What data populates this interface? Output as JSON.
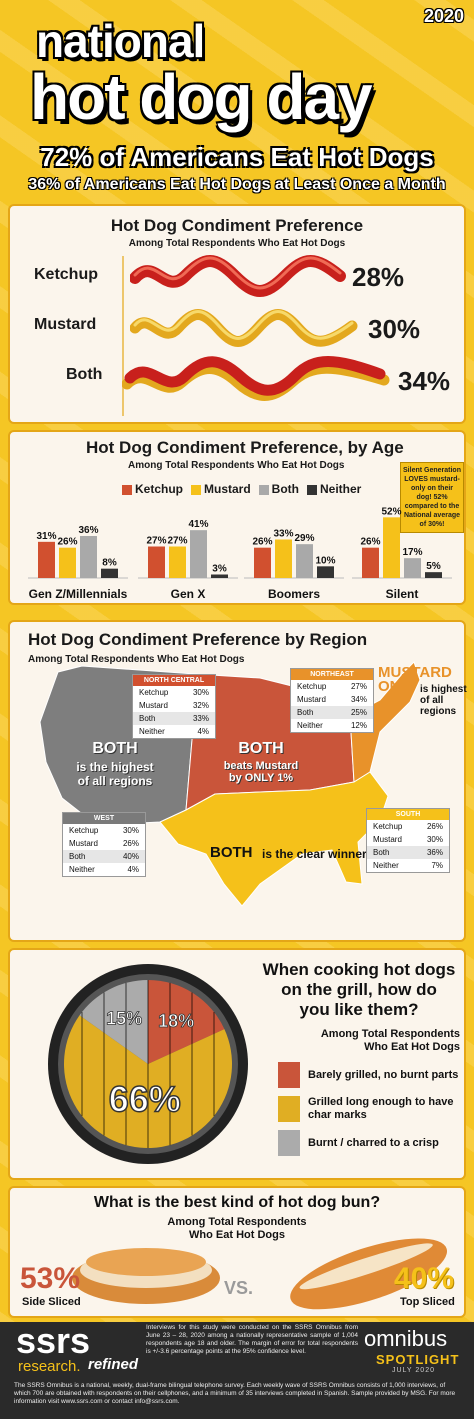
{
  "header": {
    "year": "2020",
    "title_line1": "national",
    "title_line2": "hot dog day",
    "headline": "72% of Americans Eat Hot Dogs",
    "subheadline": "36% of Americans Eat Hot Dogs at Least Once a Month"
  },
  "condiment": {
    "title": "Hot Dog Condiment Preference",
    "subtitle": "Among Total Respondents Who Eat Hot Dogs",
    "items": [
      {
        "label": "Ketchup",
        "value": "28%"
      },
      {
        "label": "Mustard",
        "value": "30%"
      },
      {
        "label": "Both",
        "value": "34%"
      }
    ]
  },
  "chart_data": {
    "type": "bar",
    "title": "Hot Dog Condiment Preference, by Age",
    "subtitle": "Among Total Respondents Who Eat Hot Dogs",
    "categories": [
      "Gen Z/Millennials",
      "Gen X",
      "Boomers",
      "Silent"
    ],
    "series": [
      {
        "name": "Ketchup",
        "values": [
          31,
          27,
          26,
          26
        ],
        "color": "#D1502F"
      },
      {
        "name": "Mustard",
        "values": [
          26,
          27,
          33,
          52
        ],
        "color": "#F5C11A"
      },
      {
        "name": "Both",
        "values": [
          36,
          41,
          29,
          17
        ],
        "color": "#A9A9A9"
      },
      {
        "name": "Neither",
        "values": [
          8,
          3,
          10,
          5
        ],
        "color": "#333333"
      }
    ],
    "ylim": [
      0,
      60
    ],
    "legend": "top"
  },
  "age_callout": "Silent Generation LOVES mustard-only on their dog! 52% compared to the National average of 30%!",
  "region": {
    "title": "Hot Dog Condiment Preference by Region",
    "subtitle": "Among Total Respondents Who Eat Hot Dogs",
    "callout_mustard_1": "MUSTARD",
    "callout_mustard_2": "ONLY",
    "callout_mustard_3": "is highest of all regions",
    "west_text_1": "BOTH",
    "west_text_2": "is the highest of all regions",
    "nc_text_1": "BOTH",
    "nc_text_2": "beats Mustard by ONLY 1%",
    "south_text_1": "BOTH",
    "south_text_2": "is the clear winner",
    "tables": [
      {
        "name": "NORTH CENTRAL",
        "color": "#D1502F",
        "rows": [
          [
            "Ketchup",
            "30%"
          ],
          [
            "Mustard",
            "32%"
          ],
          [
            "Both",
            "33%"
          ],
          [
            "Neither",
            "4%"
          ]
        ]
      },
      {
        "name": "NORTHEAST",
        "color": "#E8922A",
        "rows": [
          [
            "Ketchup",
            "27%"
          ],
          [
            "Mustard",
            "34%"
          ],
          [
            "Both",
            "25%"
          ],
          [
            "Neither",
            "12%"
          ]
        ]
      },
      {
        "name": "WEST",
        "color": "#7A7A7A",
        "rows": [
          [
            "Ketchup",
            "30%"
          ],
          [
            "Mustard",
            "26%"
          ],
          [
            "Both",
            "40%"
          ],
          [
            "Neither",
            "4%"
          ]
        ]
      },
      {
        "name": "SOUTH",
        "color": "#F5C11A",
        "rows": [
          [
            "Ketchup",
            "26%"
          ],
          [
            "Mustard",
            "30%"
          ],
          [
            "Both",
            "36%"
          ],
          [
            "Neither",
            "7%"
          ]
        ]
      }
    ]
  },
  "grill": {
    "question_1": "When cooking hot dogs",
    "question_2": "on the grill, how do",
    "question_3": "you like them?",
    "subtitle_1": "Among Total Respondents",
    "subtitle_2": "Who Eat Hot Dogs",
    "slices": [
      {
        "label": "Barely grilled, no burnt parts",
        "value": 18,
        "display": "18%",
        "color": "#C9553A"
      },
      {
        "label": "Grilled long enough to have char marks",
        "value": 66,
        "display": "66%",
        "color": "#E0AE23"
      },
      {
        "label": "Burnt / charred to a crisp",
        "value": 15,
        "display": "15%",
        "color": "#ABABAB"
      }
    ]
  },
  "bun": {
    "title": "What is the best kind of hot dog bun?",
    "subtitle_1": "Among Total Respondents",
    "subtitle_2": "Who Eat Hot Dogs",
    "left_pct": "53%",
    "left_label": "Side Sliced",
    "vs": "VS.",
    "right_pct": "40%",
    "right_label": "Top Sliced"
  },
  "footer": {
    "logo": "ssrs",
    "tagline_1": "research.",
    "tagline_2": "refined",
    "method": "Interviews for this study were conducted on the SSRS Omnibus from June 23 – 28, 2020 among a nationally representative sample of 1,004 respondents age 18 and older. The margin of error for total respondents is +/-3.6 percentage points at the 95% confidence level.",
    "omnibus": "omnibus",
    "spotlight": "SPOTLIGHT",
    "date": "JULY 2020",
    "note": "The SSRS Omnibus is a national, weekly, dual-frame bilingual telephone survey. Each weekly wave of SSRS Omnibus consists of 1,000 interviews, of which 700 are obtained with respondents on their cellphones, and a minimum of 35 interviews completed in Spanish. Sample provided by MSG. For more information visit www.ssrs.com or contact info@ssrs.com."
  }
}
